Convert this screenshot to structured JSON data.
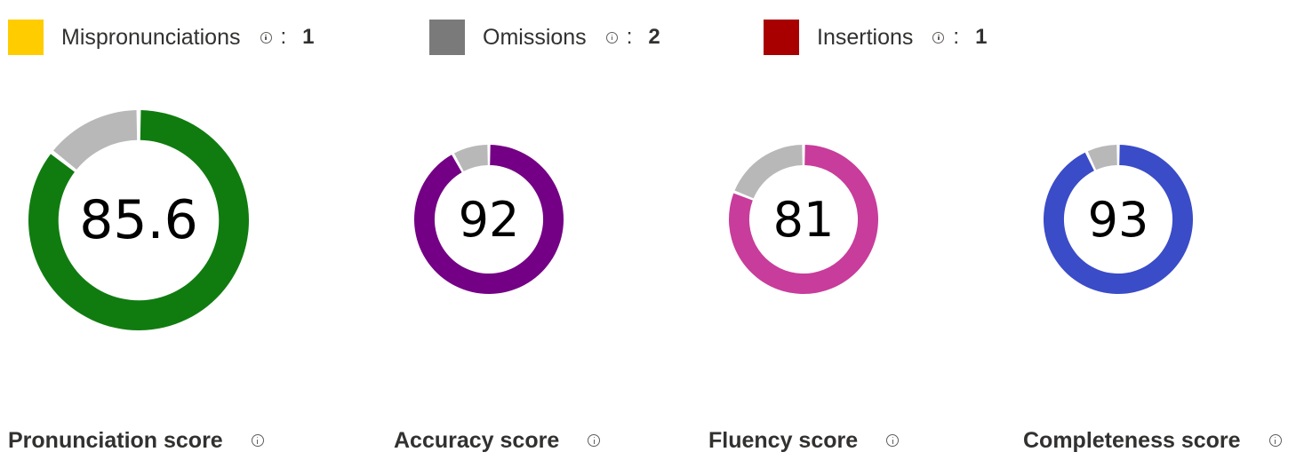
{
  "legend": {
    "items": [
      {
        "label": "Mispronunciations",
        "count": "1",
        "color": "#FFCC00",
        "icon": "info-icon"
      },
      {
        "label": "Omissions",
        "count": "2",
        "color": "#7A7A7A",
        "icon": "info-icon"
      },
      {
        "label": "Insertions",
        "count": "1",
        "color": "#A80000",
        "icon": "info-icon"
      }
    ],
    "separator": ":"
  },
  "scores": [
    {
      "label": "Pronunciation score",
      "value": "85.6",
      "percent": 85.6,
      "color": "#107C10",
      "remainder_color": "#B8B8B8",
      "icon": "info-icon"
    },
    {
      "label": "Accuracy score",
      "value": "92",
      "percent": 92,
      "color": "#740085",
      "remainder_color": "#B8B8B8",
      "icon": "info-icon"
    },
    {
      "label": "Fluency score",
      "value": "81",
      "percent": 81,
      "color": "#C83C9B",
      "remainder_color": "#B8B8B8",
      "icon": "info-icon"
    },
    {
      "label": "Completeness score",
      "value": "93",
      "percent": 93,
      "color": "#3A4CC7",
      "remainder_color": "#B8B8B8",
      "icon": "info-icon"
    }
  ]
}
